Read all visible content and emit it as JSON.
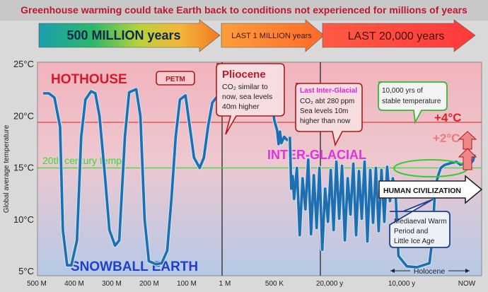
{
  "chart_data": {
    "type": "line",
    "title": "Greenhouse warming could take Earth back to conditions not experienced for millions of years",
    "ylabel": "Global average temperature",
    "ylim": [
      5,
      25
    ],
    "y_ticks": [
      "25°C",
      "20°C",
      "15°C",
      "10°C",
      "5°C"
    ],
    "y_tick_values": [
      25,
      20,
      15,
      10,
      5
    ],
    "x_ticks": [
      "500 M",
      "400 M",
      "300 M",
      "200 M",
      "100 M",
      "1 M",
      "500 K",
      "20,000 y",
      "10,000 y",
      "NOW"
    ],
    "eras": [
      {
        "label": "500 MILLION years",
        "color": "#1fa0a0"
      },
      {
        "label": "LAST 1 MILLION years",
        "color": "#ff8a30"
      },
      {
        "label": "LAST 20,000 years",
        "color": "#ff4040"
      }
    ],
    "reference_lines": [
      {
        "label": "20th century temp",
        "value": 15,
        "color": "#33dd33"
      },
      {
        "label": "+4°C",
        "value": 19.4,
        "color": "#dd2222"
      }
    ],
    "zone_labels": {
      "hothouse": "HOTHOUSE",
      "snowball": "SNOWBALL EARTH",
      "interglacial": "INTER-GLACIAL",
      "plus4": "+4°C",
      "plus2": "+2°C",
      "holocene": "Holocene"
    },
    "callouts": {
      "petm": "PETM",
      "pliocene_title": "Pliocene",
      "pliocene_l1": "CO₂ similar to",
      "pliocene_l2": "now, sea levels",
      "pliocene_l3": "40m higher",
      "lig_title": "Last Inter-Glacial",
      "lig_l1": "CO₂ abt 280 ppm",
      "lig_l2": "Sea levels 10m",
      "lig_l3": "higher than now",
      "stable_l1": "10,000 yrs of",
      "stable_l2": "stable temperature",
      "human": "HUMAN CIVILIZATION",
      "mwp_l1": "Mediaeval Warm",
      "mwp_l2": "Period and",
      "mwp_l3": "Little Ice Age"
    },
    "series": [
      {
        "color": "#1f6fb0",
        "segments": [
          [
            [
              0,
              22.2
            ],
            [
              4,
              22.2
            ],
            [
              8,
              21.8
            ],
            [
              12,
              19
            ],
            [
              14,
              9
            ],
            [
              17,
              5.6
            ],
            [
              20,
              5.6
            ],
            [
              24,
              8
            ],
            [
              27,
              18
            ],
            [
              30,
              21.6
            ],
            [
              34,
              22.4
            ],
            [
              37,
              22.2
            ],
            [
              40,
              20
            ],
            [
              44,
              14
            ],
            [
              47,
              9
            ],
            [
              51,
              7.5
            ],
            [
              54,
              8
            ],
            [
              58,
              18
            ],
            [
              61,
              22.3
            ],
            [
              66,
              22.6
            ],
            [
              69,
              20
            ],
            [
              72,
              10
            ],
            [
              75,
              6
            ],
            [
              80,
              5.7
            ],
            [
              84,
              5.8
            ],
            [
              88,
              7
            ],
            [
              91,
              12
            ],
            [
              94,
              18
            ],
            [
              97,
              21.6
            ],
            [
              101,
              22
            ],
            [
              104,
              19
            ],
            [
              107,
              16
            ],
            [
              111,
              15
            ],
            [
              114,
              16
            ],
            [
              117,
              19
            ],
            [
              120,
              21.3
            ],
            [
              124,
              22
            ],
            [
              130,
              22.1
            ],
            [
              138,
              22.4
            ],
            [
              146,
              23
            ],
            [
              152,
              23.4
            ],
            [
              156,
              23.7
            ],
            [
              157,
              24
            ],
            [
              158,
              23.4
            ],
            [
              160,
              22.5
            ],
            [
              162,
              21.5
            ],
            [
              164,
              19.6
            ],
            [
              166,
              18.6
            ],
            [
              167,
              17.3
            ],
            [
              168,
              18.5
            ],
            [
              169,
              17.4
            ],
            [
              171,
              18
            ],
            [
              173,
              17.7
            ],
            [
              175,
              17.8
            ]
          ],
          [
            [
              175,
              18
            ],
            [
              176,
              13
            ],
            [
              177,
              14.2
            ],
            [
              178,
              12
            ],
            [
              180,
              15
            ],
            [
              182,
              8.5
            ],
            [
              184,
              14
            ],
            [
              186,
              11
            ],
            [
              188,
              15.8
            ],
            [
              190,
              8.6
            ],
            [
              192,
              14.3
            ],
            [
              194,
              9.2
            ],
            [
              196,
              15
            ],
            [
              198,
              7.1
            ],
            [
              200,
              13
            ],
            [
              202,
              9.8
            ],
            [
              204,
              14.8
            ],
            [
              206,
              9
            ],
            [
              208,
              15.6
            ],
            [
              210,
              10.1
            ],
            [
              212,
              15.2
            ],
            [
              214,
              8
            ],
            [
              216,
              14
            ],
            [
              218,
              10.5
            ],
            [
              220,
              15.4
            ],
            [
              222,
              8.5
            ],
            [
              224,
              14.7
            ],
            [
              226,
              10.1
            ],
            [
              228,
              15.6
            ],
            [
              230,
              7.9
            ],
            [
              232,
              14.8
            ],
            [
              234,
              9.7
            ],
            [
              236,
              15
            ],
            [
              238,
              8.9
            ],
            [
              240,
              14.8
            ],
            [
              242,
              9.8
            ],
            [
              244,
              15.1
            ],
            [
              246,
              11.8
            ],
            [
              248,
              14
            ],
            [
              250,
              12.5
            ]
          ],
          [
            [
              250,
              12.5
            ],
            [
              252,
              6.5
            ],
            [
              255,
              6
            ],
            [
              258,
              5.5
            ],
            [
              265,
              5.4
            ],
            [
              274,
              5.8
            ],
            [
              276,
              8
            ],
            [
              278,
              13
            ],
            [
              280,
              14.2
            ],
            [
              282,
              15
            ],
            [
              285,
              15.3
            ],
            [
              290,
              15.5
            ],
            [
              293,
              15.6
            ],
            [
              296,
              15.3
            ],
            [
              300,
              15.5
            ],
            [
              303,
              15.4
            ],
            [
              305,
              15.7
            ],
            [
              306,
              16.3
            ]
          ]
        ]
      }
    ]
  }
}
